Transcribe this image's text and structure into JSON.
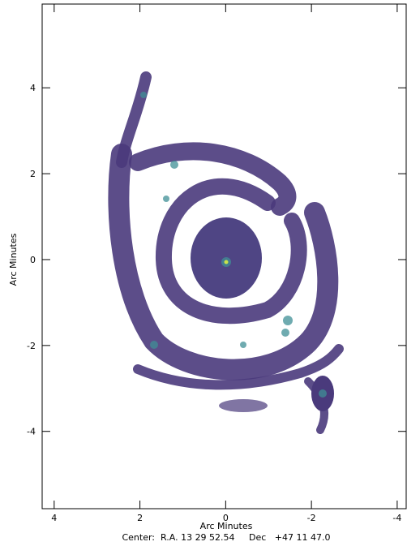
{
  "chart_data": {
    "type": "image",
    "xlabel": "Arc Minutes",
    "ylabel": "Arc Minutes",
    "caption": "Center:  R.A. 13 29 52.54     Dec   +47 11 47.0",
    "xlim": [
      4.28,
      -4.21
    ],
    "ylim": [
      -5.8,
      5.95
    ],
    "xticks": [
      4,
      2,
      0,
      -2,
      -4
    ],
    "yticks": [
      4,
      2,
      0,
      -2,
      -4
    ]
  }
}
